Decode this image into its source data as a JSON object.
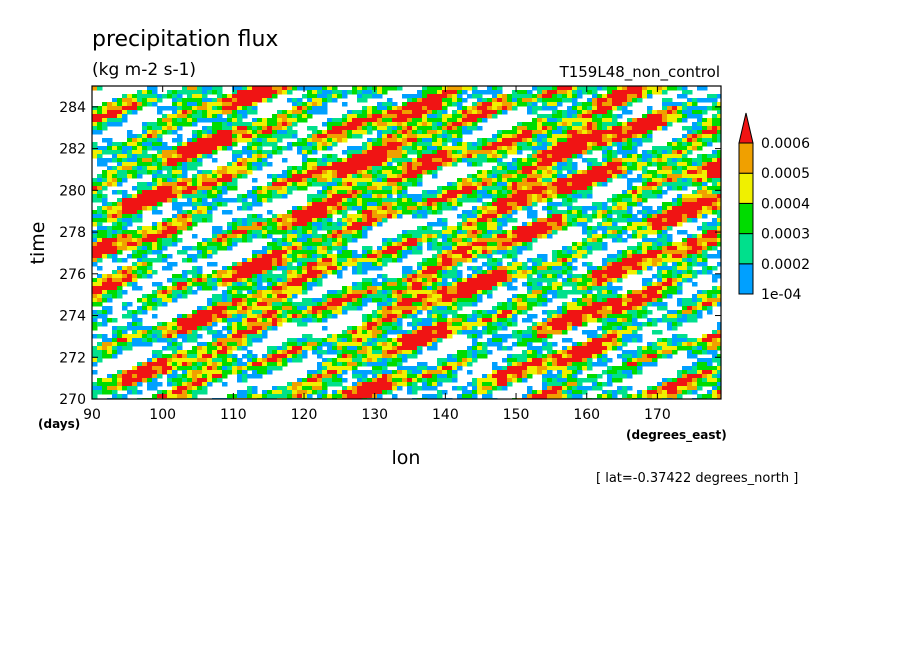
{
  "chart_data": {
    "type": "heatmap",
    "title": "precipitation flux",
    "subtitle": "(kg m-2 s-1)",
    "run_label": "T159L48_non_control",
    "xlabel": "lon",
    "ylabel": "time",
    "x_unit": "(degrees_east)",
    "y_unit": "(days)",
    "footnote": "[ lat=-0.37422 degrees_north ]",
    "xlim": [
      90,
      179
    ],
    "ylim": [
      270,
      285
    ],
    "x_ticks": [
      "90",
      "100",
      "110",
      "120",
      "130",
      "140",
      "150",
      "160",
      "170"
    ],
    "x_tick_values": [
      90,
      100,
      110,
      120,
      130,
      140,
      150,
      160,
      170
    ],
    "y_ticks": [
      "270",
      "272",
      "274",
      "276",
      "278",
      "280",
      "282",
      "284"
    ],
    "y_tick_values": [
      270,
      272,
      274,
      276,
      278,
      280,
      282,
      284
    ],
    "colorbar": {
      "labels": [
        "1e-04",
        "0.0002",
        "0.0003",
        "0.0004",
        "0.0005",
        "0.0006"
      ],
      "levels": [
        0.0001,
        0.0002,
        0.0003,
        0.0004,
        0.0005,
        0.0006
      ],
      "colors": [
        "#00a0ff",
        "#00e08c",
        "#00dc00",
        "#f0f000",
        "#f0a000",
        "#f01414"
      ],
      "extend": "max"
    },
    "grid": false,
    "description_of_field": "Hovmoller diagram; bands of heavy precipitation (>0.0006) propagating eastward, strongest near 120-180E, days 272-284"
  }
}
